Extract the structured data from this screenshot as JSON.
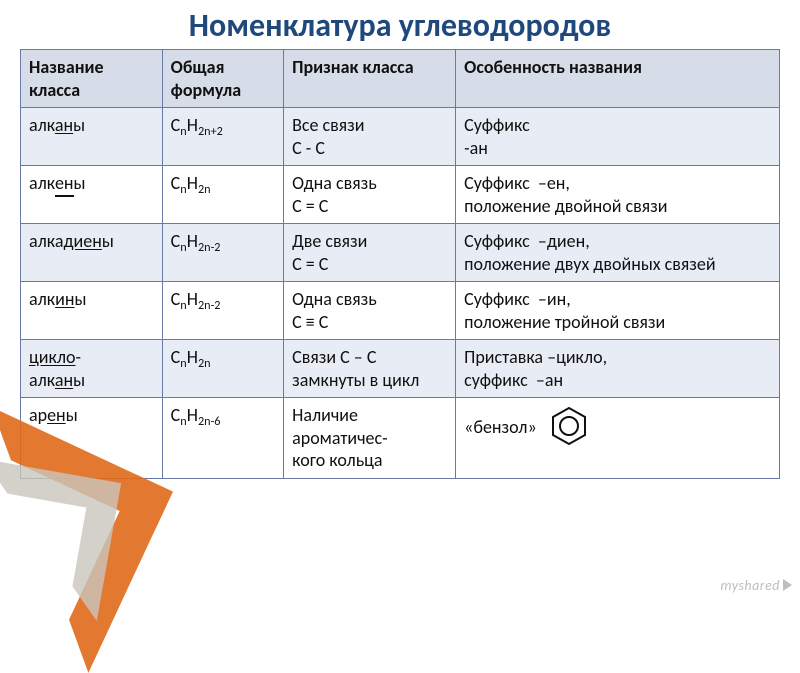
{
  "title": "Номенклатура углеводородов",
  "headers": {
    "name": "Название класса",
    "formula": "Общая формула",
    "sign": "Признак класса",
    "feature": "Особенность названия"
  },
  "rows": [
    {
      "name_html": "алк<span class='ul'>ан</span>ы",
      "formula_html": "C<sub>n</sub>H<sub>2n+2</sub>",
      "sign_html": "Все связи<br>С - С",
      "feature_html": "Суффикс<br>-ан"
    },
    {
      "name_html": "алк<span class='dbl'>ен</span>ы",
      "formula_html": "C<sub>n</sub>H<sub>2n</sub>",
      "sign_html": "Одна связь<br>С = С",
      "feature_html": "Суффикс&nbsp;&nbsp;–ен,<br>положение двойной связи"
    },
    {
      "name_html": "алка<span class='ul'>диен</span>ы",
      "formula_html": "C<sub>n</sub>H<sub>2n-2</sub>",
      "sign_html": "Две связи<br>С = С",
      "feature_html": "Суффикс&nbsp;&nbsp;–диен,<br>положение двух двойных связей"
    },
    {
      "name_html": "алк<span class='ul'>ин</span>ы",
      "formula_html": "C<sub>n</sub>H<sub>2n-2</sub>",
      "sign_html": "Одна связь<br>С ≡ С",
      "feature_html": "Суффикс&nbsp;&nbsp;–ин,<br>положение тройной связи"
    },
    {
      "name_html": "<span class='ul'>цикло</span>-<br>алк<span class='ul'>ан</span>ы",
      "formula_html": "C<sub>n</sub>H<sub>2n</sub>",
      "sign_html": "Связи С – С<br>замкнуты в цикл",
      "feature_html": "Приставка&nbsp;–цикло,<br>суффикс&nbsp;&nbsp;–ан"
    },
    {
      "name_html": "ар<span class='ul'>ен</span>ы",
      "formula_html": "C<sub>n</sub>H<sub>2n-6</sub>",
      "sign_html": "Наличие<br>ароматичес-<br>кого кольца",
      "feature_html": "«бензол» <span class='benzene'><svg width='44' height='44' viewBox='0 0 44 44'><polygon points='22,4 38,13 38,31 22,40 6,31 6,13' fill='none' stroke='#111' stroke-width='2'/><circle cx='22' cy='22' r='9' fill='none' stroke='#111' stroke-width='2'/></svg></span>"
    }
  ],
  "watermark": "myshared",
  "colors": {
    "title": "#1f497d",
    "header_bg": "#d6dce8",
    "border": "#6a7aa6",
    "accent_orange": "#e06a1a",
    "accent_gray": "#c9c6bc"
  },
  "row_backgrounds": [
    "#e8ecf4",
    "#ffffff",
    "#e8ecf4",
    "#ffffff",
    "#e8ecf4",
    "#ffffff"
  ]
}
